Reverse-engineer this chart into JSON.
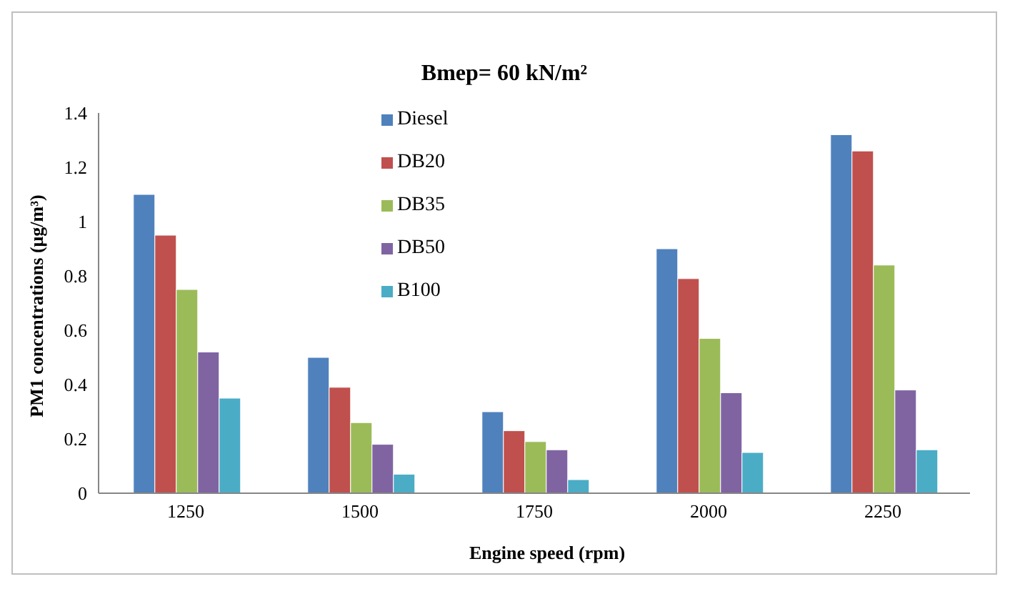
{
  "chart_data": {
    "type": "bar",
    "title": "Bmep= 60 kN/m²",
    "xlabel": "Engine speed (rpm)",
    "ylabel": "PM1 concentrations (μg/m³)",
    "categories": [
      "1250",
      "1500",
      "1750",
      "2000",
      "2250"
    ],
    "series": [
      {
        "name": "Diesel",
        "color": "#4f81bd",
        "values": [
          1.1,
          0.5,
          0.3,
          0.9,
          1.32
        ]
      },
      {
        "name": "DB20",
        "color": "#c0504d",
        "values": [
          0.95,
          0.39,
          0.23,
          0.79,
          1.26
        ]
      },
      {
        "name": "DB35",
        "color": "#9bbb59",
        "values": [
          0.75,
          0.26,
          0.19,
          0.57,
          0.84
        ]
      },
      {
        "name": "DB50",
        "color": "#8064a2",
        "values": [
          0.52,
          0.18,
          0.16,
          0.37,
          0.38
        ]
      },
      {
        "name": "B100",
        "color": "#4bacc6",
        "values": [
          0.35,
          0.07,
          0.05,
          0.15,
          0.16
        ]
      }
    ],
    "ylim": [
      0,
      1.4
    ],
    "yticks": [
      0,
      0.2,
      0.4,
      0.6,
      0.8,
      1,
      1.2,
      1.4
    ],
    "grid": false,
    "legend": "top"
  }
}
